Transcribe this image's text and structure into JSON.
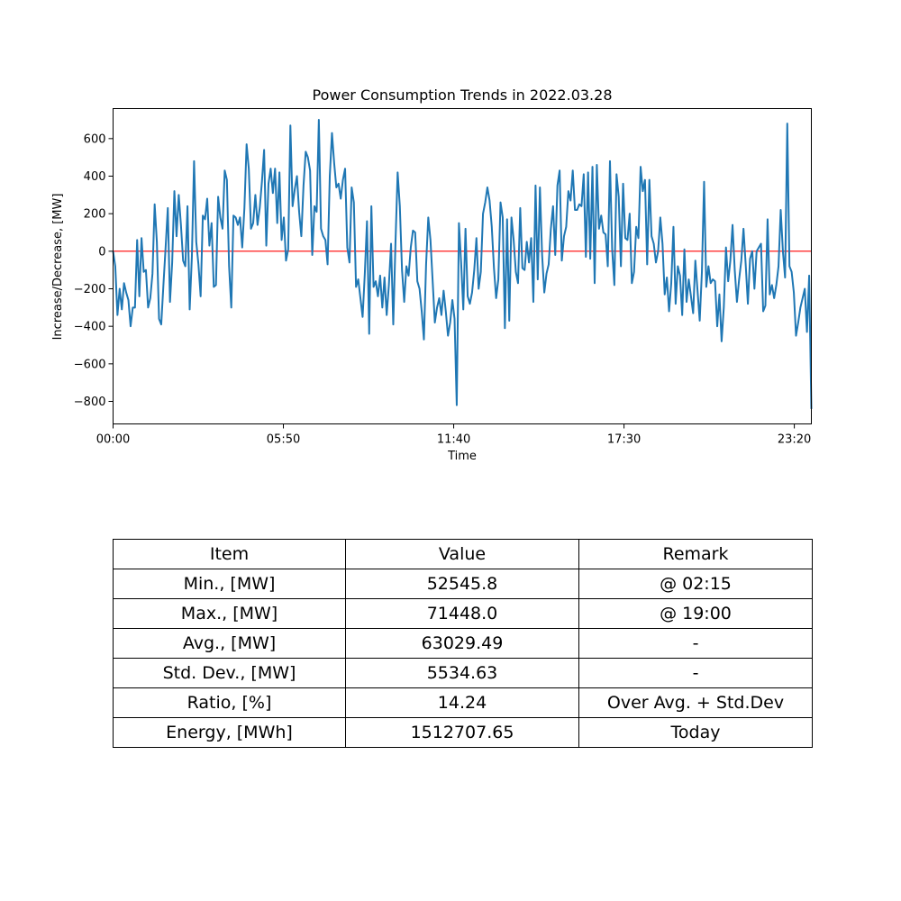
{
  "chart_data": {
    "type": "line",
    "title": "Power Consumption Trends in 2022.03.28",
    "xlabel": "Time",
    "ylabel": "Increase/Decrease, [MW]",
    "xlim_minutes": [
      0,
      1435
    ],
    "ylim": [
      -920,
      760
    ],
    "x_ticks": [
      {
        "minutes": 0,
        "label": "00:00"
      },
      {
        "minutes": 350,
        "label": "05:50"
      },
      {
        "minutes": 700,
        "label": "11:40"
      },
      {
        "minutes": 1050,
        "label": "17:30"
      },
      {
        "minutes": 1400,
        "label": "23:20"
      }
    ],
    "y_ticks": [
      -800,
      -600,
      -400,
      -200,
      0,
      200,
      400,
      600
    ],
    "x_interval_minutes": 5,
    "reference_line": {
      "value": 0,
      "color": "#ff0000"
    },
    "series": [
      {
        "name": "Increase/Decrease",
        "color": "#1f77b4",
        "values": [
          0,
          -80,
          -340,
          -200,
          -310,
          -170,
          -220,
          -260,
          -400,
          -300,
          -300,
          60,
          -240,
          70,
          -110,
          -100,
          -300,
          -250,
          -120,
          250,
          50,
          -360,
          -390,
          -180,
          20,
          230,
          -270,
          -60,
          320,
          80,
          300,
          140,
          -50,
          -80,
          240,
          -310,
          -30,
          480,
          50,
          -70,
          -240,
          190,
          170,
          280,
          30,
          150,
          -190,
          -180,
          290,
          180,
          120,
          430,
          380,
          -80,
          -300,
          190,
          180,
          140,
          180,
          20,
          230,
          570,
          440,
          120,
          150,
          300,
          140,
          230,
          370,
          540,
          30,
          360,
          440,
          310,
          440,
          150,
          420,
          60,
          180,
          -50,
          10,
          670,
          240,
          330,
          400,
          210,
          80,
          350,
          530,
          500,
          430,
          -20,
          240,
          210,
          700,
          120,
          80,
          60,
          -70,
          400,
          630,
          470,
          340,
          360,
          280,
          380,
          440,
          20,
          -60,
          340,
          260,
          -190,
          -150,
          -250,
          -350,
          -120,
          160,
          -440,
          240,
          -190,
          -160,
          -240,
          -130,
          -300,
          -140,
          -340,
          -180,
          40,
          -390,
          40,
          420,
          240,
          -100,
          -270,
          -80,
          -130,
          20,
          110,
          100,
          -160,
          -200,
          -320,
          -470,
          -70,
          180,
          60,
          -160,
          -380,
          -300,
          -250,
          -340,
          -210,
          -320,
          -450,
          -380,
          -260,
          -360,
          -820,
          150,
          -60,
          -310,
          120,
          -240,
          -280,
          -220,
          -100,
          70,
          -200,
          -110,
          200,
          260,
          340,
          270,
          130,
          -90,
          -250,
          -150,
          260,
          180,
          -410,
          170,
          -370,
          180,
          60,
          -110,
          -170,
          230,
          -90,
          -100,
          50,
          -60,
          70,
          -270,
          350,
          -150,
          340,
          -20,
          -220,
          -120,
          -70,
          120,
          240,
          -20,
          350,
          430,
          -50,
          80,
          130,
          320,
          270,
          430,
          220,
          220,
          250,
          240,
          410,
          -30,
          420,
          -40,
          450,
          -170,
          460,
          120,
          190,
          100,
          90,
          -80,
          480,
          10,
          -180,
          410,
          290,
          -80,
          360,
          70,
          60,
          200,
          -170,
          -110,
          130,
          70,
          450,
          320,
          380,
          -70,
          380,
          80,
          40,
          -60,
          0,
          180,
          40,
          -230,
          -140,
          -320,
          -170,
          130,
          -280,
          -80,
          -130,
          -340,
          10,
          -270,
          -150,
          -240,
          -330,
          -50,
          -210,
          -370,
          -110,
          370,
          -190,
          -80,
          -170,
          -150,
          -160,
          -400,
          -230,
          -480,
          -300,
          20,
          -160,
          -50,
          140,
          -100,
          -270,
          -150,
          -50,
          120,
          -70,
          -280,
          -40,
          0,
          -200,
          0,
          20,
          40,
          -320,
          -290,
          170,
          -230,
          -180,
          -250,
          -180,
          -80,
          220,
          0,
          -140,
          680,
          -80,
          -110,
          -220,
          -450,
          -380,
          -300,
          -250,
          -200,
          -430,
          -130,
          -840
        ]
      }
    ]
  },
  "table": {
    "header": [
      "Item",
      "Value",
      "Remark"
    ],
    "rows": [
      [
        "Min., [MW]",
        "52545.8",
        "@ 02:15"
      ],
      [
        "Max., [MW]",
        "71448.0",
        "@ 19:00"
      ],
      [
        "Avg., [MW]",
        "63029.49",
        "-"
      ],
      [
        "Std. Dev., [MW]",
        "5534.63",
        "-"
      ],
      [
        "Ratio, [%]",
        "14.24",
        "Over Avg. + Std.Dev"
      ],
      [
        "Energy, [MWh]",
        "1512707.65",
        "Today"
      ]
    ]
  }
}
